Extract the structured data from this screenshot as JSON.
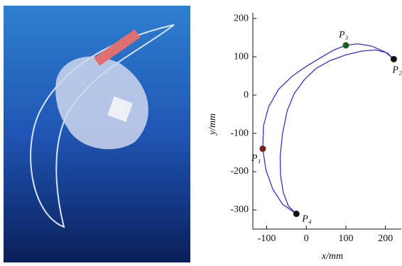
{
  "chart_data": {
    "type": "line",
    "x": [
      -25,
      -60,
      -85,
      -102,
      -110,
      -108,
      -95,
      -70,
      -35,
      0,
      40,
      70,
      100,
      130,
      165,
      200,
      221,
      205,
      175,
      140,
      100,
      60,
      25,
      -5,
      -30,
      -48,
      -60,
      -66,
      -65,
      -58,
      -45,
      -25
    ],
    "y": [
      -310,
      -285,
      -245,
      -195,
      -140,
      -80,
      -30,
      15,
      50,
      75,
      100,
      118,
      130,
      134,
      128,
      112,
      94,
      110,
      118,
      115,
      105,
      90,
      70,
      40,
      5,
      -40,
      -100,
      -160,
      -210,
      -255,
      -290,
      -310
    ],
    "color": "#3535c8",
    "points": [
      {
        "name": "P₁",
        "x": -110,
        "y": -140,
        "color": "#7a1f1f"
      },
      {
        "name": "P₂",
        "x": 221,
        "y": 94,
        "color": "#111111"
      },
      {
        "name": "P₃",
        "x": 100,
        "y": 130,
        "color": "#1f5f1f"
      },
      {
        "name": "P₄",
        "x": -25,
        "y": -310,
        "color": "#111111"
      }
    ],
    "xlim": [
      -135,
      240
    ],
    "ylim": [
      -350,
      215
    ],
    "xticks": [
      -100,
      0,
      100,
      200
    ],
    "yticks": [
      -300,
      -200,
      -100,
      0,
      100,
      200
    ],
    "xlabel": "x/mm",
    "ylabel": "y/mm"
  }
}
